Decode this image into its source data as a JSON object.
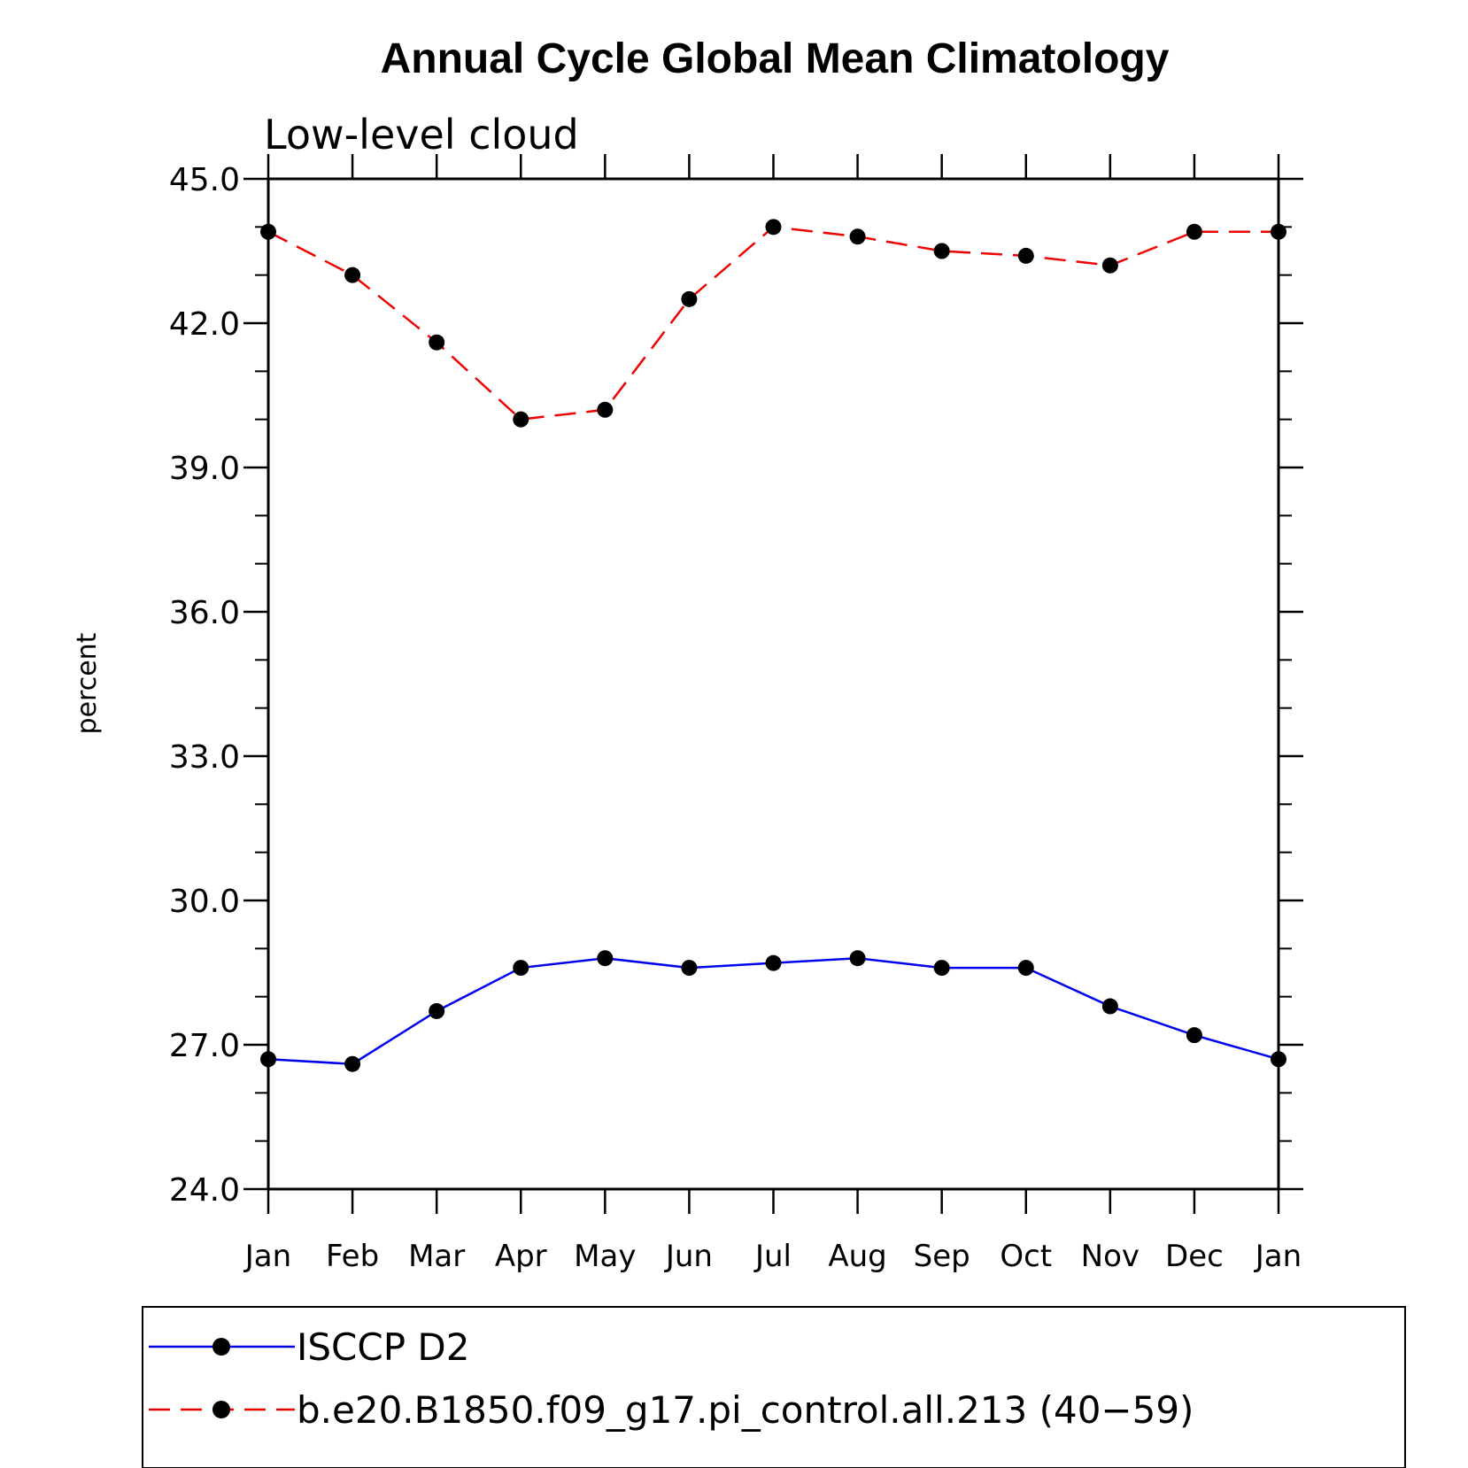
{
  "chart_data": {
    "type": "line",
    "title": "Annual Cycle Global Mean Climatology",
    "subtitle": "Low-level cloud",
    "ylabel": "percent",
    "xlabel": "",
    "ylim": [
      24.0,
      45.0
    ],
    "y_major_ticks": [
      "24.0",
      "27.0",
      "30.0",
      "33.0",
      "36.0",
      "39.0",
      "42.0",
      "45.0"
    ],
    "y_major_values": [
      24,
      27,
      30,
      33,
      36,
      39,
      42,
      45
    ],
    "y_minor_step": 1,
    "categories": [
      "Jan",
      "Feb",
      "Mar",
      "Apr",
      "May",
      "Jun",
      "Jul",
      "Aug",
      "Sep",
      "Oct",
      "Nov",
      "Dec",
      "Jan"
    ],
    "series": [
      {
        "name": "ISCCP D2",
        "color": "#0000ee",
        "dash": "solid",
        "marker": "filled-circle",
        "values": [
          26.7,
          26.6,
          27.7,
          28.6,
          28.8,
          28.6,
          28.7,
          28.8,
          28.6,
          28.6,
          27.8,
          27.2,
          26.7
        ]
      },
      {
        "name": "b.e20.B1850.f09_g17.pi_control.all.213 (40−59)",
        "color": "#ee0000",
        "dash": "dashed",
        "marker": "filled-circle",
        "values": [
          43.9,
          43.0,
          41.6,
          40.0,
          40.2,
          42.5,
          44.0,
          43.8,
          43.5,
          43.4,
          43.2,
          43.9,
          43.9
        ]
      }
    ],
    "legend_position": "bottom",
    "grid": false
  }
}
